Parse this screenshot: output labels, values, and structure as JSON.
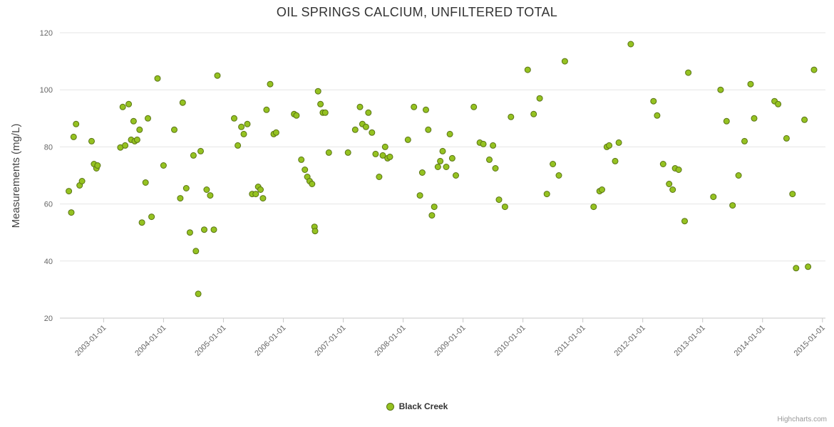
{
  "header": {
    "title": "OIL SPRINGS CALCIUM, UNFILTERED TOTAL"
  },
  "legend": {
    "label": "Black Creek"
  },
  "credits": {
    "label": "Highcharts.com"
  },
  "colors": {
    "marker_fill": "#95c221",
    "marker_border": "#597414",
    "gridline": "#e6e6e6",
    "axis_line": "#c9c9c9",
    "tick_label": "#666666"
  },
  "chart_data": {
    "type": "scatter",
    "title": "OIL SPRINGS CALCIUM, UNFILTERED TOTAL",
    "xlabel": "",
    "ylabel": "Measurements (mg/L)",
    "ylim": [
      20,
      120
    ],
    "xlim": [
      2002.27,
      2015.05
    ],
    "grid": "horizontal",
    "legend_position": "bottom-center",
    "y_ticks": [
      20,
      40,
      60,
      80,
      100,
      120
    ],
    "x_ticks": [
      {
        "year": 2003,
        "label": "2003-01-01"
      },
      {
        "year": 2004,
        "label": "2004-01-01"
      },
      {
        "year": 2005,
        "label": "2005-01-01"
      },
      {
        "year": 2006,
        "label": "2006-01-01"
      },
      {
        "year": 2007,
        "label": "2007-01-01"
      },
      {
        "year": 2008,
        "label": "2008-01-01"
      },
      {
        "year": 2009,
        "label": "2009-01-01"
      },
      {
        "year": 2010,
        "label": "2010-01-01"
      },
      {
        "year": 2011,
        "label": "2011-01-01"
      },
      {
        "year": 2012,
        "label": "2012-01-01"
      },
      {
        "year": 2013,
        "label": "2013-01-01"
      },
      {
        "year": 2014,
        "label": "2014-01-01"
      },
      {
        "year": 2015,
        "label": "2015-01-01"
      }
    ],
    "series": [
      {
        "name": "Black Creek",
        "color": "#95c221",
        "border_color": "#597414",
        "points": [
          [
            2002.42,
            64.5
          ],
          [
            2002.46,
            57
          ],
          [
            2002.5,
            83.5
          ],
          [
            2002.54,
            88
          ],
          [
            2002.6,
            66.5
          ],
          [
            2002.64,
            68
          ],
          [
            2002.8,
            82
          ],
          [
            2002.84,
            74
          ],
          [
            2002.88,
            72.5
          ],
          [
            2002.9,
            73.5
          ],
          [
            2003.28,
            79.8
          ],
          [
            2003.32,
            94
          ],
          [
            2003.36,
            80.5
          ],
          [
            2003.42,
            95
          ],
          [
            2003.46,
            82.5
          ],
          [
            2003.5,
            89
          ],
          [
            2003.52,
            82
          ],
          [
            2003.56,
            82.5
          ],
          [
            2003.6,
            86
          ],
          [
            2003.64,
            53.5
          ],
          [
            2003.7,
            67.5
          ],
          [
            2003.74,
            90
          ],
          [
            2003.8,
            55.5
          ],
          [
            2003.9,
            104
          ],
          [
            2004.0,
            73.5
          ],
          [
            2004.18,
            86
          ],
          [
            2004.28,
            62
          ],
          [
            2004.32,
            95.5
          ],
          [
            2004.38,
            65.5
          ],
          [
            2004.44,
            50
          ],
          [
            2004.5,
            77
          ],
          [
            2004.54,
            43.5
          ],
          [
            2004.58,
            28.5
          ],
          [
            2004.62,
            78.5
          ],
          [
            2004.68,
            51
          ],
          [
            2004.72,
            65
          ],
          [
            2004.78,
            63
          ],
          [
            2004.84,
            51
          ],
          [
            2004.9,
            105
          ],
          [
            2005.18,
            90
          ],
          [
            2005.24,
            80.5
          ],
          [
            2005.3,
            87
          ],
          [
            2005.34,
            84.5
          ],
          [
            2005.4,
            88
          ],
          [
            2005.48,
            63.5
          ],
          [
            2005.54,
            63.5
          ],
          [
            2005.58,
            66
          ],
          [
            2005.62,
            65
          ],
          [
            2005.66,
            62
          ],
          [
            2005.72,
            93
          ],
          [
            2005.78,
            102
          ],
          [
            2005.84,
            84.5
          ],
          [
            2005.88,
            85
          ],
          [
            2006.18,
            91.5
          ],
          [
            2006.22,
            91
          ],
          [
            2006.3,
            75.5
          ],
          [
            2006.36,
            72
          ],
          [
            2006.4,
            69.5
          ],
          [
            2006.44,
            68
          ],
          [
            2006.48,
            67
          ],
          [
            2006.52,
            52
          ],
          [
            2006.53,
            50.5
          ],
          [
            2006.58,
            99.5
          ],
          [
            2006.62,
            95
          ],
          [
            2006.66,
            92
          ],
          [
            2006.7,
            92
          ],
          [
            2006.76,
            78
          ],
          [
            2007.08,
            78
          ],
          [
            2007.2,
            86
          ],
          [
            2007.28,
            94
          ],
          [
            2007.32,
            88
          ],
          [
            2007.38,
            87
          ],
          [
            2007.42,
            92
          ],
          [
            2007.48,
            85
          ],
          [
            2007.54,
            77.5
          ],
          [
            2007.6,
            69.5
          ],
          [
            2007.66,
            77
          ],
          [
            2007.7,
            80
          ],
          [
            2007.74,
            76
          ],
          [
            2007.78,
            76.5
          ],
          [
            2008.08,
            82.5
          ],
          [
            2008.18,
            94
          ],
          [
            2008.28,
            63
          ],
          [
            2008.32,
            71
          ],
          [
            2008.38,
            93
          ],
          [
            2008.42,
            86
          ],
          [
            2008.48,
            56
          ],
          [
            2008.52,
            59
          ],
          [
            2008.58,
            73
          ],
          [
            2008.62,
            75
          ],
          [
            2008.66,
            78.5
          ],
          [
            2008.72,
            73
          ],
          [
            2008.78,
            84.5
          ],
          [
            2008.82,
            76
          ],
          [
            2008.88,
            70
          ],
          [
            2009.18,
            94
          ],
          [
            2009.28,
            81.5
          ],
          [
            2009.34,
            81
          ],
          [
            2009.44,
            75.5
          ],
          [
            2009.5,
            80.5
          ],
          [
            2009.54,
            72.5
          ],
          [
            2009.6,
            61.5
          ],
          [
            2009.7,
            59
          ],
          [
            2009.8,
            90.5
          ],
          [
            2010.08,
            107
          ],
          [
            2010.18,
            91.5
          ],
          [
            2010.28,
            97
          ],
          [
            2010.4,
            63.5
          ],
          [
            2010.5,
            74
          ],
          [
            2010.6,
            70
          ],
          [
            2010.7,
            110
          ],
          [
            2011.18,
            59
          ],
          [
            2011.28,
            64.5
          ],
          [
            2011.32,
            65
          ],
          [
            2011.4,
            80
          ],
          [
            2011.44,
            80.5
          ],
          [
            2011.54,
            75
          ],
          [
            2011.6,
            81.5
          ],
          [
            2011.8,
            116
          ],
          [
            2012.18,
            96
          ],
          [
            2012.24,
            91
          ],
          [
            2012.34,
            74
          ],
          [
            2012.44,
            67
          ],
          [
            2012.5,
            65
          ],
          [
            2012.54,
            72.5
          ],
          [
            2012.6,
            72
          ],
          [
            2012.7,
            54
          ],
          [
            2012.76,
            106
          ],
          [
            2013.18,
            62.5
          ],
          [
            2013.3,
            100
          ],
          [
            2013.4,
            89
          ],
          [
            2013.5,
            59.5
          ],
          [
            2013.6,
            70
          ],
          [
            2013.7,
            82
          ],
          [
            2013.8,
            102
          ],
          [
            2013.86,
            90
          ],
          [
            2014.2,
            96
          ],
          [
            2014.26,
            95
          ],
          [
            2014.4,
            83
          ],
          [
            2014.5,
            63.5
          ],
          [
            2014.56,
            37.5
          ],
          [
            2014.7,
            89.5
          ],
          [
            2014.76,
            38
          ],
          [
            2014.86,
            107
          ]
        ]
      }
    ]
  }
}
